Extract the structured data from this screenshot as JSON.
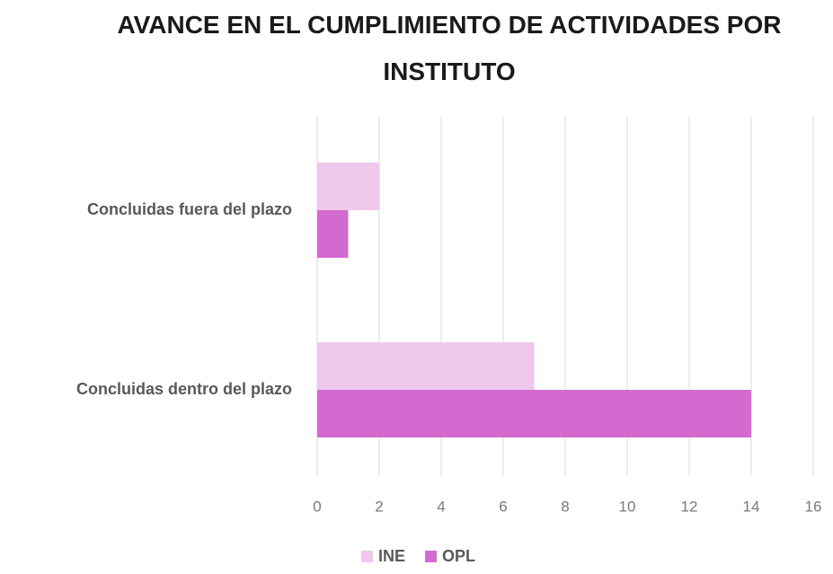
{
  "chart_data": {
    "type": "hbar",
    "title": "AVANCE EN EL CUMPLIMIENTO DE ACTIVIDADES POR INSTITUTO",
    "categories": [
      "Concluidas fuera del plazo",
      "Concluidas dentro del plazo"
    ],
    "series": [
      {
        "name": "INE",
        "color": "#f0c8ec",
        "values": [
          2,
          7
        ]
      },
      {
        "name": "OPL",
        "color": "#d36ad0",
        "values": [
          1,
          14
        ]
      }
    ],
    "xlim": [
      0,
      16
    ],
    "xticks": [
      0,
      2,
      4,
      6,
      8,
      10,
      12,
      14,
      16
    ],
    "grid": true,
    "legend": "bottom"
  }
}
